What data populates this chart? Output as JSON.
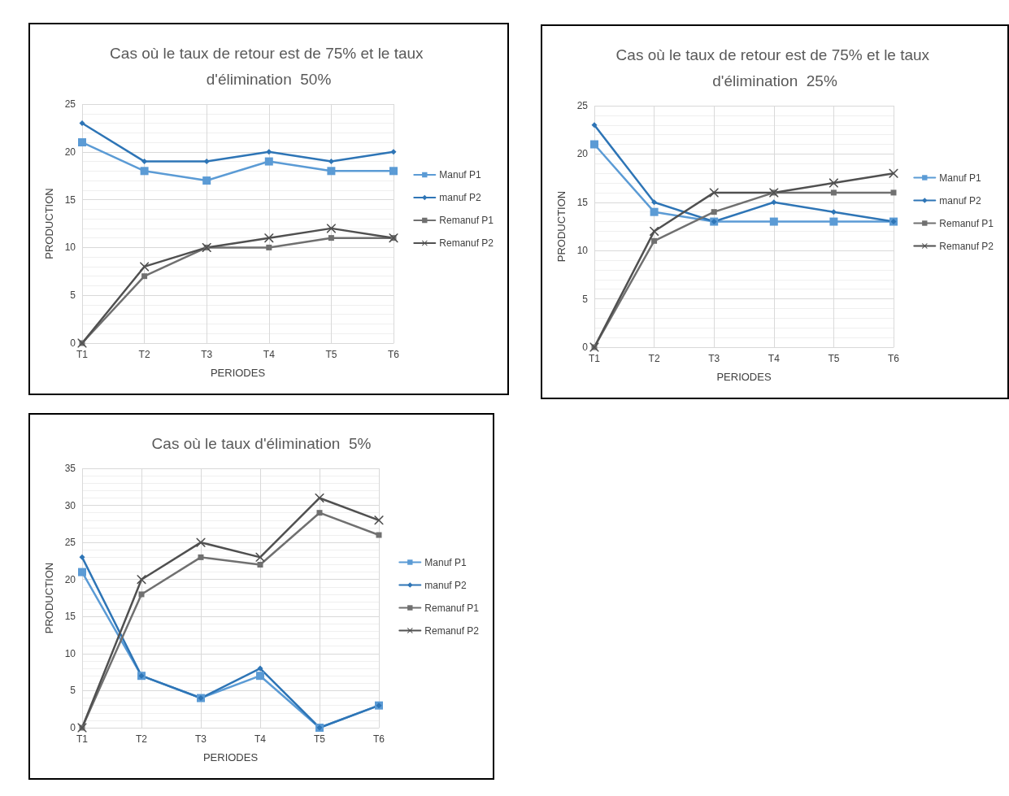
{
  "chart_data": [
    {
      "type": "line",
      "title": "Cas où le taux de retour est de 75% et le taux d'élimination  50%",
      "xlabel": "PERIODES",
      "ylabel": "PRODUCTION",
      "categories": [
        "T1",
        "T2",
        "T3",
        "T4",
        "T5",
        "T6"
      ],
      "ylim": [
        0,
        25
      ],
      "yticks": [
        0,
        5,
        10,
        15,
        20,
        25
      ],
      "grid": true,
      "legend": "right",
      "series": [
        {
          "name": "Manuf P1",
          "color": "#5b9bd5",
          "marker": "square",
          "values": [
            21,
            18,
            17,
            19,
            18,
            18
          ]
        },
        {
          "name": "manuf P2",
          "color": "#2e75b6",
          "marker": "diamond",
          "values": [
            23,
            19,
            19,
            20,
            19,
            20
          ]
        },
        {
          "name": "Remanuf P1",
          "color": "#707070",
          "marker": "square",
          "values": [
            0,
            7,
            10,
            10,
            11,
            11
          ]
        },
        {
          "name": "Remanuf P2",
          "color": "#505050",
          "marker": "cross",
          "values": [
            0,
            8,
            10,
            11,
            12,
            11
          ]
        }
      ]
    },
    {
      "type": "line",
      "title": "Cas où le taux de retour est de 75% et le taux d'élimination  25%",
      "xlabel": "PERIODES",
      "ylabel": "PRODUCTION",
      "categories": [
        "T1",
        "T2",
        "T3",
        "T4",
        "T5",
        "T6"
      ],
      "ylim": [
        0,
        25
      ],
      "yticks": [
        0,
        5,
        10,
        15,
        20,
        25
      ],
      "grid": true,
      "legend": "right",
      "series": [
        {
          "name": "Manuf P1",
          "color": "#5b9bd5",
          "marker": "square",
          "values": [
            21,
            14,
            13,
            13,
            13,
            13
          ]
        },
        {
          "name": "manuf P2",
          "color": "#2e75b6",
          "marker": "diamond",
          "values": [
            23,
            15,
            13,
            15,
            14,
            13
          ]
        },
        {
          "name": "Remanuf P1",
          "color": "#707070",
          "marker": "square",
          "values": [
            0,
            11,
            14,
            16,
            16,
            16
          ]
        },
        {
          "name": "Remanuf P2",
          "color": "#505050",
          "marker": "cross",
          "values": [
            0,
            12,
            16,
            16,
            17,
            18
          ]
        }
      ]
    },
    {
      "type": "line",
      "title": "Cas où le taux d'élimination  5%",
      "xlabel": "PERIODES",
      "ylabel": "PRODUCTION",
      "categories": [
        "T1",
        "T2",
        "T3",
        "T4",
        "T5",
        "T6"
      ],
      "ylim": [
        0,
        35
      ],
      "yticks": [
        0,
        5,
        10,
        15,
        20,
        25,
        30,
        35
      ],
      "grid": true,
      "legend": "right",
      "series": [
        {
          "name": "Manuf P1",
          "color": "#5b9bd5",
          "marker": "square",
          "values": [
            21,
            7,
            4,
            7,
            0,
            3
          ]
        },
        {
          "name": "manuf P2",
          "color": "#2e75b6",
          "marker": "diamond",
          "values": [
            23,
            7,
            4,
            8,
            0,
            3
          ]
        },
        {
          "name": "Remanuf P1",
          "color": "#707070",
          "marker": "square",
          "values": [
            0,
            18,
            23,
            22,
            29,
            26
          ]
        },
        {
          "name": "Remanuf P2",
          "color": "#505050",
          "marker": "cross",
          "values": [
            0,
            20,
            25,
            23,
            31,
            28
          ]
        }
      ]
    }
  ]
}
